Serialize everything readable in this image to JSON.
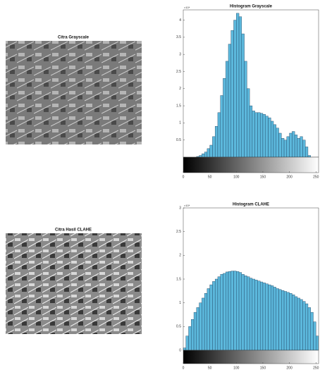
{
  "images": [
    {
      "title": "Citra Grayscale"
    },
    {
      "title": "Citra Hasil CLAHE"
    }
  ],
  "chart_data": [
    {
      "type": "histogram",
      "title": "Histogram Grayscale",
      "exponent_label": "×10⁴",
      "color": "#5cb8dc",
      "edge_color": "#1d3f5e",
      "bins": [
        0,
        5,
        10,
        15,
        20,
        25,
        30,
        35,
        40,
        45,
        50,
        55,
        60,
        65,
        70,
        75,
        80,
        85,
        90,
        95,
        100,
        105,
        110,
        115,
        120,
        125,
        130,
        135,
        140,
        145,
        150,
        155,
        160,
        165,
        170,
        175,
        180,
        185,
        190,
        195,
        200,
        205,
        210,
        215,
        220,
        225,
        230,
        235,
        240,
        245,
        250,
        255
      ],
      "values": [
        0,
        0,
        0,
        0,
        0,
        0.02,
        0.05,
        0.1,
        0.15,
        0.25,
        0.35,
        0.6,
        0.9,
        1.3,
        1.8,
        2.3,
        2.8,
        3.3,
        3.7,
        4.0,
        4.2,
        4.1,
        3.6,
        2.8,
        2.0,
        1.5,
        1.35,
        1.3,
        1.3,
        1.28,
        1.25,
        1.2,
        1.15,
        1.05,
        0.95,
        0.85,
        0.7,
        0.55,
        0.5,
        0.6,
        0.7,
        0.75,
        0.65,
        0.55,
        0.6,
        0.5,
        0.3,
        0.05,
        0,
        0,
        0
      ],
      "xlim": [
        0,
        255
      ],
      "xticks": [
        0,
        50,
        100,
        150,
        200,
        250
      ],
      "ylim": [
        0,
        4.3
      ],
      "yticks": [
        0.5,
        1,
        1.5,
        2,
        2.5,
        3,
        3.5,
        4
      ]
    },
    {
      "type": "histogram",
      "title": "Histogram CLAHE",
      "exponent_label": "×10⁴",
      "color": "#5cb8dc",
      "edge_color": "#1d3f5e",
      "bins": [
        0,
        5,
        10,
        15,
        20,
        25,
        30,
        35,
        40,
        45,
        50,
        55,
        60,
        65,
        70,
        75,
        80,
        85,
        90,
        95,
        100,
        105,
        110,
        115,
        120,
        125,
        130,
        135,
        140,
        145,
        150,
        155,
        160,
        165,
        170,
        175,
        180,
        185,
        190,
        195,
        200,
        205,
        210,
        215,
        220,
        225,
        230,
        235,
        240,
        245,
        250,
        255
      ],
      "values": [
        0.05,
        0.3,
        0.5,
        0.65,
        0.8,
        0.9,
        1.0,
        1.1,
        1.2,
        1.3,
        1.38,
        1.45,
        1.5,
        1.55,
        1.6,
        1.62,
        1.65,
        1.66,
        1.67,
        1.67,
        1.66,
        1.64,
        1.6,
        1.57,
        1.55,
        1.52,
        1.5,
        1.48,
        1.46,
        1.44,
        1.42,
        1.4,
        1.38,
        1.36,
        1.33,
        1.3,
        1.28,
        1.26,
        1.24,
        1.22,
        1.2,
        1.17,
        1.13,
        1.1,
        1.07,
        1.03,
        0.98,
        0.9,
        0.8,
        0.6,
        0.3
      ],
      "xlim": [
        0,
        255
      ],
      "xticks": [
        0,
        50,
        100,
        150,
        200,
        250
      ],
      "ylim": [
        0,
        3
      ],
      "yticks": [
        0,
        0.5,
        1,
        1.5,
        2,
        2.5,
        3
      ]
    }
  ]
}
